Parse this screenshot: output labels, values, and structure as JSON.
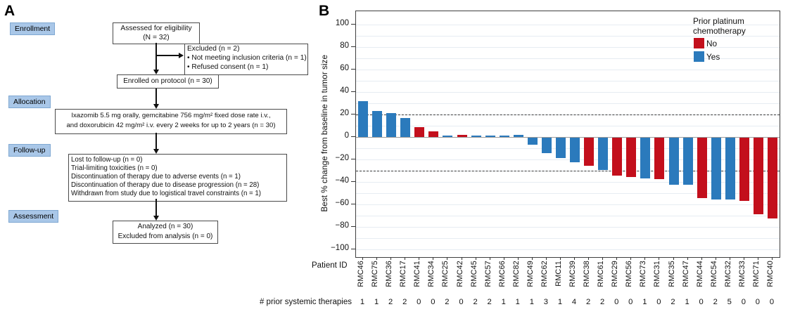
{
  "panel_a": {
    "label": "A",
    "stages": [
      "Enrollment",
      "Allocation",
      "Follow-up",
      "Assessment"
    ],
    "boxes": {
      "eligibility": [
        "Assessed for eligibility",
        "(N = 32)"
      ],
      "excluded": [
        "Excluded (n = 2)",
        "• Not meeting inclusion criteria (n = 1)",
        "• Refused consent (n = 1)"
      ],
      "enrolled": "Enrolled on protocol (n = 30)",
      "allocation": [
        "Ixazomib 5.5 mg orally, gemcitabine 756 mg/m² fixed dose rate i.v.,",
        "and doxorubicin 42 mg/m² i.v. every 2 weeks for up to 2 years (n = 30)"
      ],
      "followup": [
        "Lost to follow-up (n = 0)",
        "Trial-limiting toxicities (n = 0)",
        "Discontinuation of therapy due to adverse events (n = 1)",
        "Discontinuation of therapy due to disease progression (n = 28)",
        "Withdrawn from study due to logistical travel constraints (n = 1)"
      ],
      "assessment": [
        "Analyzed (n = 30)",
        "Excluded from analysis (n = 0)"
      ]
    }
  },
  "panel_b": {
    "label": "B"
  },
  "chart_data": {
    "type": "bar",
    "title": "",
    "ylabel": "Best % change from baseline in tumor size",
    "row_labels": {
      "patient": "Patient ID",
      "therapies": "# prior systemic therapies"
    },
    "ylim": [
      -100,
      100
    ],
    "yticks": [
      100,
      80,
      60,
      40,
      20,
      0,
      -20,
      -40,
      -60,
      -80,
      -100
    ],
    "reference_lines": [
      20,
      -30
    ],
    "grid": true,
    "legend_position": "top-right",
    "legend": {
      "title_lines": [
        "Prior platinum",
        "chemotherapy"
      ],
      "items": [
        {
          "label": "No",
          "color": "#c30f1c"
        },
        {
          "label": "Yes",
          "color": "#2b7abc"
        }
      ]
    },
    "categories": [
      "RMC46",
      "RMC75",
      "RMC36",
      "RMC17",
      "RMC41",
      "RMC34",
      "RMC25",
      "RMC42",
      "RMC45",
      "RMC57",
      "RMC66",
      "RMC82",
      "RMC49",
      "RMC62",
      "RMC11",
      "RMC39",
      "RMC38",
      "RMC61",
      "RMC29",
      "RMC56",
      "RMC73",
      "RMC31",
      "RMC35",
      "RMC47",
      "RMC44",
      "RMC54",
      "RMC32",
      "RMC33",
      "RMC71",
      "RMC40"
    ],
    "values": [
      32,
      23,
      21,
      17,
      9,
      5,
      1.5,
      2,
      1.5,
      1.5,
      1.5,
      2,
      -6,
      -14,
      -18,
      -22,
      -25,
      -29,
      -34,
      -35,
      -36,
      -37,
      -42,
      -42,
      -54,
      -55,
      -55,
      -56,
      -68,
      -72
    ],
    "prior_platinum": [
      "Yes",
      "Yes",
      "Yes",
      "Yes",
      "No",
      "No",
      "Yes",
      "No",
      "Yes",
      "Yes",
      "Yes",
      "Yes",
      "Yes",
      "Yes",
      "Yes",
      "Yes",
      "No",
      "Yes",
      "No",
      "No",
      "Yes",
      "No",
      "Yes",
      "Yes",
      "No",
      "Yes",
      "Yes",
      "No",
      "No",
      "No"
    ],
    "prior_therapies": [
      "1",
      "1",
      "2",
      "2",
      "0",
      "0",
      "2",
      "0",
      "2",
      "2",
      "1",
      "1",
      "1",
      "3",
      "1",
      "4",
      "2",
      "2",
      "0",
      "0",
      "1",
      "0",
      "2",
      "1",
      "0",
      "2",
      "5",
      "0",
      "0",
      "0"
    ]
  }
}
